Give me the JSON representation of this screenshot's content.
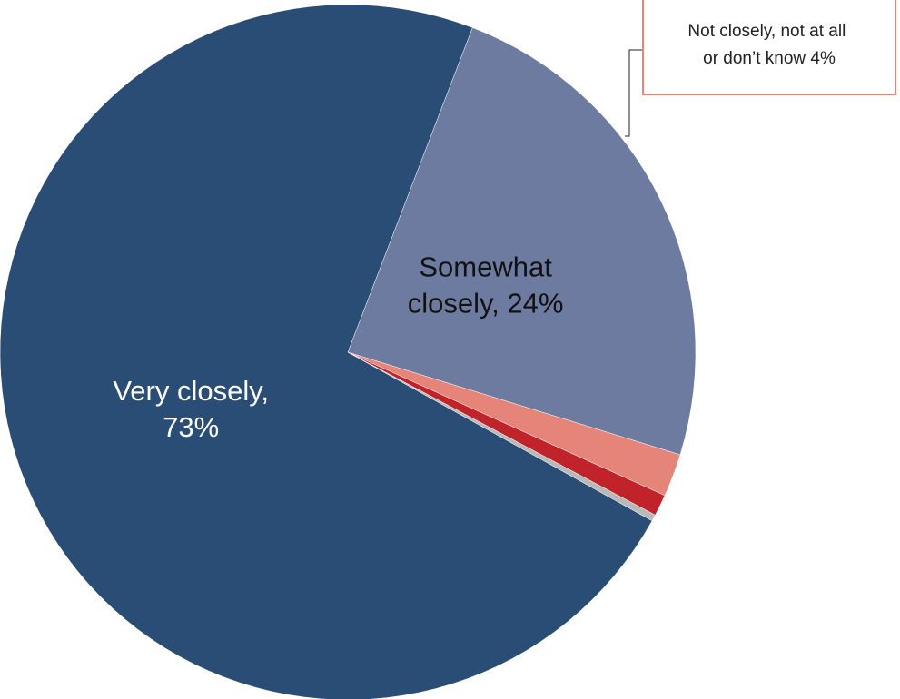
{
  "chart_data": {
    "type": "pie",
    "title": "",
    "slices": [
      {
        "label": "Very closely, 73%",
        "label_lines": [
          "Very closely,",
          "73%"
        ],
        "value": 73,
        "color": "#2a4d75",
        "text_color": "#ffffff"
      },
      {
        "label": "Somewhat closely, 24%",
        "label_lines": [
          "Somewhat",
          "closely, 24%"
        ],
        "value": 24,
        "color": "#6c7b9f",
        "text_color": "#111111"
      },
      {
        "label": "Not closely",
        "value": 2,
        "color": "#e5857a"
      },
      {
        "label": "Not at all",
        "value": 1,
        "color": "#c0242a"
      },
      {
        "label": "Don't know",
        "value": 0.3,
        "color": "#b9b9b9"
      }
    ],
    "callout": {
      "lines": [
        "Not closely, not at all",
        "or don’t know  4%"
      ],
      "border_color": "#e5857a"
    }
  }
}
